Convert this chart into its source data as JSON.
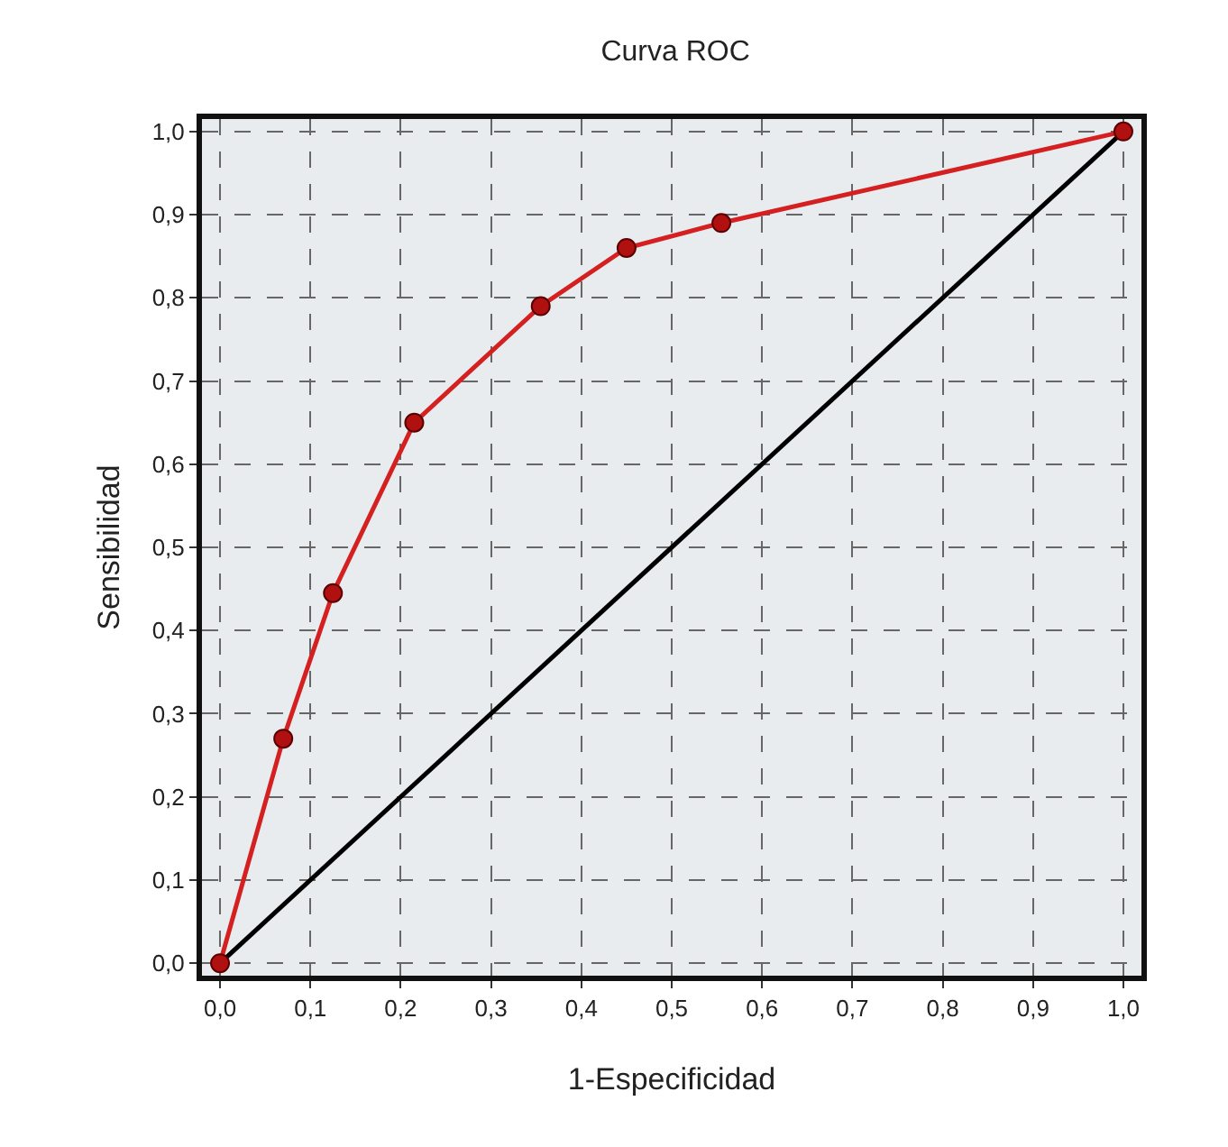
{
  "chart_data": {
    "type": "line",
    "title": "Curva ROC",
    "xlabel": "1-Especificidad",
    "ylabel": "Sensibilidad",
    "xlim": [
      -0.02,
      1.02
    ],
    "ylim": [
      -0.015,
      1.015
    ],
    "xticks": [
      {
        "value": 0,
        "label": "0,0"
      },
      {
        "value": 0.1,
        "label": "0,1"
      },
      {
        "value": 0.2,
        "label": "0,2"
      },
      {
        "value": 0.3,
        "label": "0,3"
      },
      {
        "value": 0.4,
        "label": "0,4"
      },
      {
        "value": 0.5,
        "label": "0,5"
      },
      {
        "value": 0.6,
        "label": "0,6"
      },
      {
        "value": 0.7,
        "label": "0,7"
      },
      {
        "value": 0.8,
        "label": "0,8"
      },
      {
        "value": 0.9,
        "label": "0,9"
      },
      {
        "value": 1,
        "label": "1,0"
      }
    ],
    "yticks": [
      {
        "value": 0,
        "label": "0,0"
      },
      {
        "value": 0.1,
        "label": "0,1"
      },
      {
        "value": 0.2,
        "label": "0,2"
      },
      {
        "value": 0.3,
        "label": "0,3"
      },
      {
        "value": 0.4,
        "label": "0,4"
      },
      {
        "value": 0.5,
        "label": "0,5"
      },
      {
        "value": 0.6,
        "label": "0,6"
      },
      {
        "value": 0.7,
        "label": "0,7"
      },
      {
        "value": 0.8,
        "label": "0,8"
      },
      {
        "value": 0.9,
        "label": "0,9"
      },
      {
        "value": 1,
        "label": "1,0"
      }
    ],
    "grid": true,
    "line_style": "solid",
    "series": [
      {
        "color": "#d42020",
        "marker": "circle",
        "x": [
          0,
          0.07,
          0.125,
          0.215,
          0.355,
          0.45,
          0.555,
          1
        ],
        "values": [
          0,
          0.27,
          0.445,
          0.65,
          0.79,
          0.86,
          0.89,
          1
        ]
      },
      {
        "color": "#000000",
        "marker": "none",
        "x": [
          0,
          1
        ],
        "values": [
          0,
          1
        ]
      }
    ]
  }
}
